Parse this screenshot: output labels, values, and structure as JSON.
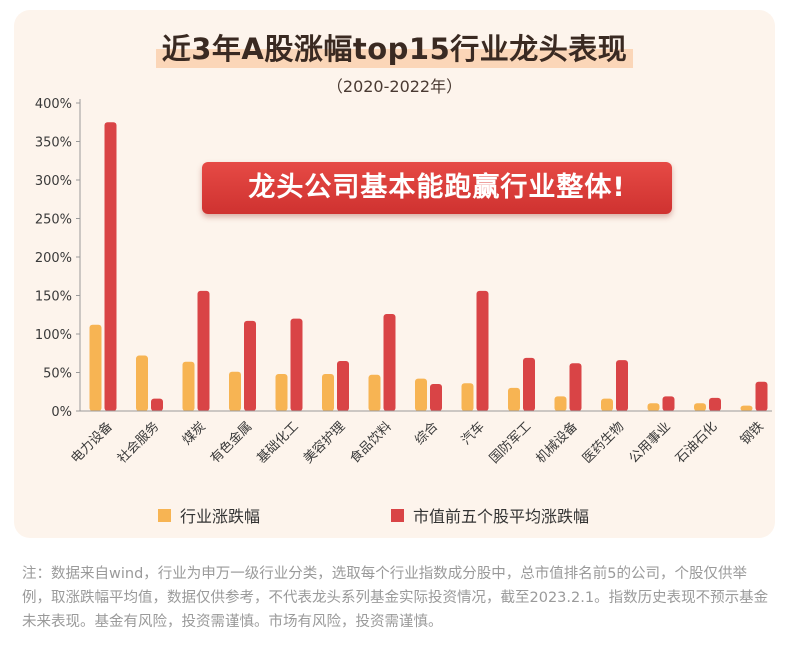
{
  "colors": {
    "industry": "#f7b453",
    "leader": "#d94446",
    "banner": "#dc3b38"
  },
  "note": "注：数据来自wind，行业为申万一级行业分类，选取每个行业指数成分股中，总市值排名前5的公司，个股仅供举例，取涨跌幅平均值，数据仅供参考，不代表龙头系列基金实际投资情况，截至2023.2.1。指数历史表现不预示基金未来表现。基金有风险，投资需谨慎。市场有风险，投资需谨慎。",
  "chart_data": {
    "type": "bar",
    "title": "近3年A股涨幅top15行业龙头表现",
    "subtitle": "（2020-2022年）",
    "annotation": "龙头公司基本能跑赢行业整体!",
    "categories": [
      "电力设备",
      "社会服务",
      "煤炭",
      "有色金属",
      "基础化工",
      "美容护理",
      "食品饮料",
      "综合",
      "汽车",
      "国防军工",
      "机械设备",
      "医药生物",
      "公用事业",
      "石油石化",
      "钢铁"
    ],
    "series": [
      {
        "name": "行业涨跌幅",
        "values": [
          112,
          72,
          64,
          51,
          48,
          48,
          47,
          42,
          36,
          30,
          19,
          16,
          10,
          10,
          7
        ]
      },
      {
        "name": "市值前五个股平均涨跌幅",
        "values": [
          375,
          16,
          156,
          117,
          120,
          65,
          126,
          35,
          156,
          69,
          62,
          66,
          19,
          17,
          38
        ]
      }
    ],
    "yticks": [
      "0%",
      "50%",
      "100%",
      "150%",
      "200%",
      "250%",
      "300%",
      "350%",
      "400%"
    ],
    "ylim": [
      0,
      400
    ],
    "legend_position": "bottom",
    "grid": false
  }
}
